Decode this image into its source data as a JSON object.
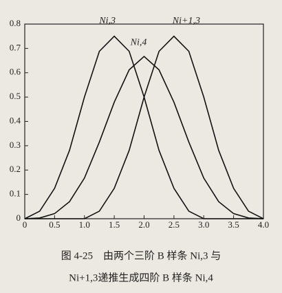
{
  "chart_data": {
    "type": "line",
    "x": [
      0,
      0.25,
      0.5,
      0.75,
      1,
      1.25,
      1.5,
      1.75,
      2,
      2.25,
      2.5,
      2.75,
      3,
      3.25,
      3.5,
      3.75,
      4
    ],
    "series": [
      {
        "name": "Ni,3",
        "color": "#111111",
        "values": [
          0,
          0.031,
          0.125,
          0.281,
          0.5,
          0.688,
          0.75,
          0.688,
          0.5,
          0.281,
          0.125,
          0.031,
          0,
          0,
          0,
          0,
          0
        ]
      },
      {
        "name": "Ni+1,3",
        "color": "#111111",
        "values": [
          0,
          0,
          0,
          0,
          0,
          0.031,
          0.125,
          0.281,
          0.5,
          0.688,
          0.75,
          0.688,
          0.5,
          0.281,
          0.125,
          0.031,
          0
        ]
      },
      {
        "name": "Ni,4",
        "color": "#111111",
        "values": [
          0,
          0.003,
          0.021,
          0.07,
          0.167,
          0.315,
          0.479,
          0.612,
          0.667,
          0.612,
          0.479,
          0.315,
          0.167,
          0.07,
          0.021,
          0.003,
          0
        ]
      }
    ],
    "xlim": [
      0,
      4
    ],
    "xticks": [
      0,
      0.5,
      {
        "value": 1,
        "label": "1.0"
      },
      1.5,
      {
        "value": 2,
        "label": "2.0"
      },
      2.5,
      {
        "value": 3,
        "label": "3.0"
      },
      3.5,
      {
        "value": 4,
        "label": "4.0"
      }
    ],
    "ylim": [
      0,
      0.8
    ],
    "yticks": [
      0,
      0.1,
      0.2,
      0.3,
      0.4,
      0.5,
      0.6,
      0.7,
      0.8
    ],
    "caption": [
      "图 4-25　由两个三阶 B 样条 Ni,3 与",
      "Ni+1,3递推生成四阶 B 样条 Ni,4"
    ]
  }
}
